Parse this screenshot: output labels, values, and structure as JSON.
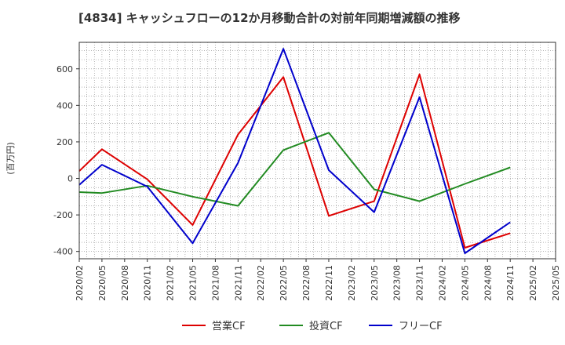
{
  "chart_data": {
    "type": "line",
    "title": "[4834]  キャッシュフローの12か月移動合計の対前年同期増減額の推移",
    "ylabel": "(百万円)",
    "xlabel": "",
    "ylim": [
      -440,
      745
    ],
    "yticks": [
      -400,
      -200,
      0,
      200,
      400,
      600
    ],
    "x_ticks": [
      "2020/02",
      "2020/05",
      "2020/08",
      "2020/11",
      "2021/02",
      "2021/05",
      "2021/08",
      "2021/11",
      "2022/02",
      "2022/05",
      "2022/08",
      "2022/11",
      "2023/02",
      "2023/05",
      "2023/08",
      "2023/11",
      "2024/02",
      "2024/05",
      "2024/08",
      "2024/11",
      "2025/02",
      "2025/05"
    ],
    "grid": true,
    "legend_position": "bottom",
    "series": [
      {
        "name": "営業CF",
        "color": "#dd0000",
        "values": [
          {
            "x": 0,
            "y": 40
          },
          {
            "x": 1,
            "y": 160
          },
          {
            "x": 3,
            "y": -5
          },
          {
            "x": 5,
            "y": -255
          },
          {
            "x": 7,
            "y": 240
          },
          {
            "x": 9,
            "y": 555
          },
          {
            "x": 11,
            "y": -205
          },
          {
            "x": 13,
            "y": -125
          },
          {
            "x": 15,
            "y": 570
          },
          {
            "x": 17,
            "y": -380
          },
          {
            "x": 19,
            "y": -300
          }
        ]
      },
      {
        "name": "投資CF",
        "color": "#228b22",
        "values": [
          {
            "x": 0,
            "y": -75
          },
          {
            "x": 1,
            "y": -80
          },
          {
            "x": 3,
            "y": -40
          },
          {
            "x": 5,
            "y": -100
          },
          {
            "x": 7,
            "y": -150
          },
          {
            "x": 9,
            "y": 155
          },
          {
            "x": 11,
            "y": 250
          },
          {
            "x": 13,
            "y": -60
          },
          {
            "x": 15,
            "y": -125
          },
          {
            "x": 17,
            "y": -30
          },
          {
            "x": 19,
            "y": 60
          }
        ]
      },
      {
        "name": "フリーCF",
        "color": "#0000cc",
        "values": [
          {
            "x": 0,
            "y": -35
          },
          {
            "x": 1,
            "y": 75
          },
          {
            "x": 3,
            "y": -45
          },
          {
            "x": 5,
            "y": -355
          },
          {
            "x": 7,
            "y": 85
          },
          {
            "x": 9,
            "y": 710
          },
          {
            "x": 11,
            "y": 45
          },
          {
            "x": 13,
            "y": -185
          },
          {
            "x": 15,
            "y": 445
          },
          {
            "x": 17,
            "y": -410
          },
          {
            "x": 19,
            "y": -240
          }
        ]
      }
    ]
  }
}
